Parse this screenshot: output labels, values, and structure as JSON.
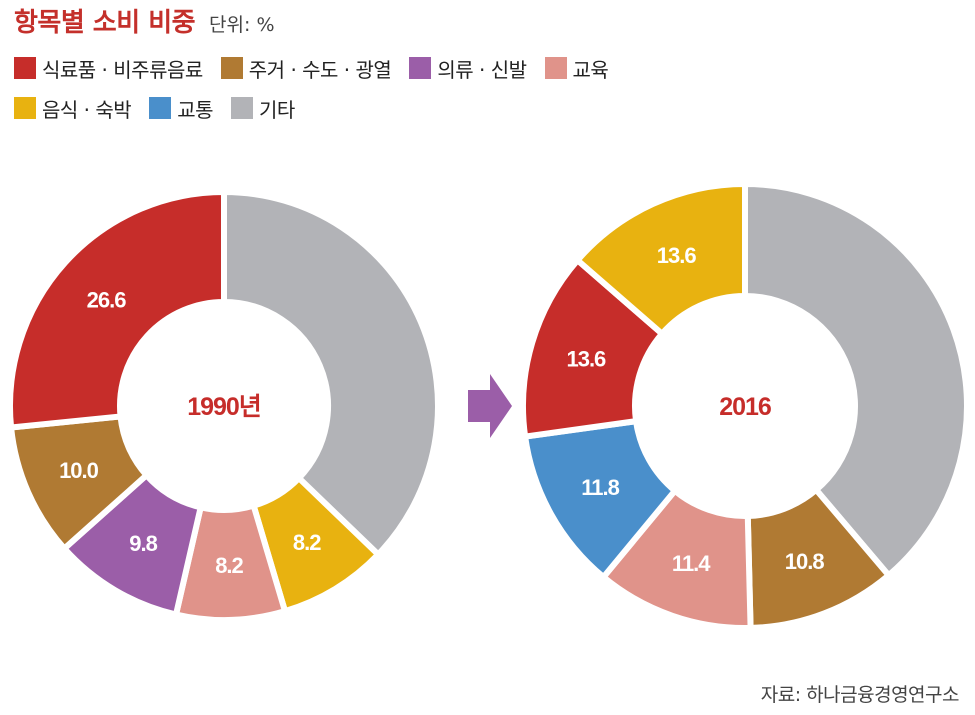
{
  "header": {
    "title": "항목별 소비 비중",
    "unit": "단위: %"
  },
  "legend": [
    [
      {
        "label": "식료품 · 비주류음료",
        "color": "#c62d2a"
      },
      {
        "label": "주거 · 수도 · 광열",
        "color": "#b07a33"
      },
      {
        "label": "의류 · 신발",
        "color": "#9b5ea8"
      },
      {
        "label": "교육",
        "color": "#e0938a"
      }
    ],
    [
      {
        "label": "음식 · 숙박",
        "color": "#e8b210"
      },
      {
        "label": "교통",
        "color": "#4a8fcb"
      },
      {
        "label": "기타",
        "color": "#b2b3b7"
      }
    ]
  ],
  "chart_data": [
    {
      "type": "donut",
      "center_label": "1990년",
      "center_color": "#c62d2a",
      "slices": [
        {
          "category": "기타",
          "value": 37.2,
          "label": "",
          "color": "#b2b3b7"
        },
        {
          "category": "음식 · 숙박",
          "value": 8.2,
          "label": "8.2",
          "color": "#e8b210"
        },
        {
          "category": "교육",
          "value": 8.2,
          "label": "8.2",
          "color": "#e0938a"
        },
        {
          "category": "의류 · 신발",
          "value": 9.8,
          "label": "9.8",
          "color": "#9b5ea8"
        },
        {
          "category": "주거 · 수도 · 광열",
          "value": 10.0,
          "label": "10.0",
          "color": "#b07a33"
        },
        {
          "category": "식료품 · 비주류음료",
          "value": 26.6,
          "label": "26.6",
          "color": "#c62d2a"
        }
      ]
    },
    {
      "type": "donut",
      "center_label": "2016",
      "center_color": "#c62d2a",
      "slices": [
        {
          "category": "기타",
          "value": 38.8,
          "label": "",
          "color": "#b2b3b7"
        },
        {
          "category": "주거 · 수도 · 광열",
          "value": 10.8,
          "label": "10.8",
          "color": "#b07a33"
        },
        {
          "category": "교육",
          "value": 11.4,
          "label": "11.4",
          "color": "#e0938a"
        },
        {
          "category": "교통",
          "value": 11.8,
          "label": "11.8",
          "color": "#4a8fcb"
        },
        {
          "category": "식료품 · 비주류음료",
          "value": 13.6,
          "label": "13.6",
          "color": "#c62d2a"
        },
        {
          "category": "음식 · 숙박",
          "value": 13.6,
          "label": "13.6",
          "color": "#e8b210"
        }
      ]
    }
  ],
  "arrow_color": "#9b5ea8",
  "source": "자료: 하나금융경영연구소"
}
